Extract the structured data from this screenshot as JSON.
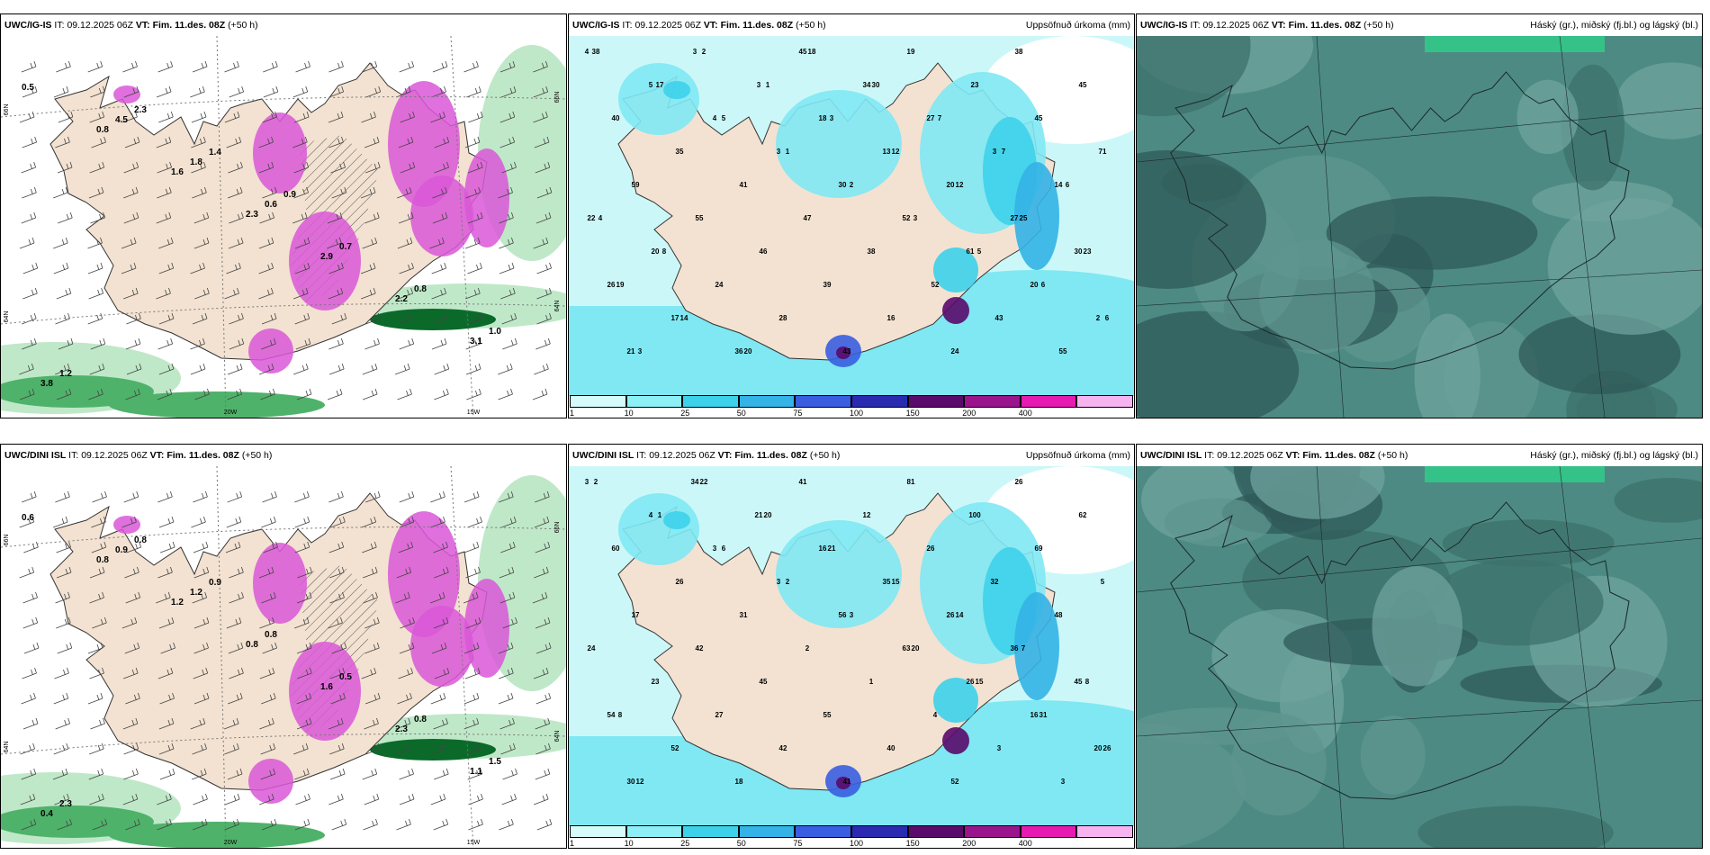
{
  "rows": [
    {
      "model": "UWC/IG-IS",
      "it_label": "IT:",
      "it_value": "09.12.2025 06Z",
      "vt_label": "VT:",
      "vt_value": "Fim. 11.des. 08Z",
      "lead": "(+50 h)",
      "precip_title": "Uppsöfnuð úrkoma (mm)",
      "cloud_title": "Háský (gr.), miðský (fj.bl.) og lágský (bl.)",
      "wind_labels": [
        "0.5",
        "0.8",
        "1.6",
        "2.3",
        "2.9",
        "2.2",
        "3.1",
        "3.8",
        "4.5",
        "1.8",
        "0.6",
        "0.7",
        "0.8",
        "1.0",
        "1.2",
        "2.3",
        "1.4",
        "0.9"
      ],
      "grid_labels": [
        "66N",
        "66N",
        "64N",
        "64N",
        "15W",
        "20W"
      ],
      "precip_numbers": [
        "4",
        "5",
        "4",
        "3",
        "30",
        "52",
        "61",
        "20",
        "2",
        "21",
        "3",
        "3",
        "18",
        "13",
        "20",
        "27",
        "30",
        "26",
        "17",
        "36",
        "45",
        "34",
        "27",
        "3",
        "14",
        "22",
        "20",
        "24",
        "28",
        "43",
        "19",
        "23",
        "45",
        "71",
        "59",
        "55",
        "46",
        "39",
        "16",
        "24",
        "38",
        "45",
        "40",
        "35",
        "41",
        "47",
        "38",
        "52",
        "43",
        "55",
        "38",
        "17",
        "5",
        "1",
        "2",
        "3",
        "5",
        "6",
        "6",
        "3",
        "2",
        "1",
        "3",
        "12",
        "12",
        "25",
        "23",
        "19",
        "14",
        "20",
        "18",
        "30",
        "7",
        "7",
        "6",
        "4",
        "8"
      ]
    },
    {
      "model": "UWC/DINI ISL",
      "it_label": "IT:",
      "it_value": "09.12.2025 06Z",
      "vt_label": "VT:",
      "vt_value": "Fim. 11.des. 08Z",
      "lead": "(+50 h)",
      "precip_title": "Uppsöfnuð úrkoma (mm)",
      "cloud_title": "Háský (gr.), miðský (fj.bl.) og lágský (bl.)",
      "wind_labels": [
        "0.6",
        "0.8",
        "1.2",
        "0.8",
        "1.6",
        "2.3",
        "1.1",
        "0.4",
        "0.9",
        "1.2",
        "0.8",
        "0.5",
        "0.8",
        "1.5",
        "2.3",
        "0.8",
        "0.9"
      ],
      "grid_labels": [
        "66N",
        "66N",
        "64N",
        "64N",
        "15W",
        "20W"
      ],
      "precip_numbers": [
        "3",
        "4",
        "3",
        "3",
        "56",
        "63",
        "26",
        "16",
        "20",
        "30",
        "34",
        "21",
        "16",
        "35",
        "26",
        "36",
        "45",
        "54",
        "52",
        "18",
        "41",
        "12",
        "26",
        "32",
        "48",
        "24",
        "23",
        "27",
        "42",
        "41",
        "81",
        "100",
        "69",
        "5",
        "17",
        "42",
        "45",
        "55",
        "40",
        "52",
        "26",
        "62",
        "60",
        "26",
        "31",
        "2",
        "1",
        "4",
        "3",
        "3",
        "2",
        "1",
        "6",
        "2",
        "3",
        "20",
        "15",
        "31",
        "26",
        "12",
        "22",
        "20",
        "21",
        "15",
        "14",
        "7",
        "8",
        "8"
      ]
    }
  ],
  "legend": {
    "ticks": [
      "1",
      "10",
      "25",
      "50",
      "75",
      "100",
      "150",
      "200",
      "400"
    ],
    "colors": [
      "#d6fbfb",
      "#8df0f6",
      "#3dd1ea",
      "#33b3e6",
      "#3a5ee0",
      "#2a2ab0",
      "#5a0a6a",
      "#9a148c",
      "#e619b0",
      "#f6b3f0"
    ]
  },
  "colors": {
    "land": "#f3e2d1",
    "precip_bg": "#ccf7f8",
    "precip_light": "#7fe8f3",
    "cloud_dark": "#2f5a58",
    "cloud_mid": "#4d8a83",
    "cloud_light": "#6fa39e",
    "green_light": "#bfe8c8",
    "green_mid": "#4fb26a",
    "green_dark": "#0b6a2a",
    "magenta": "#d957d8"
  }
}
